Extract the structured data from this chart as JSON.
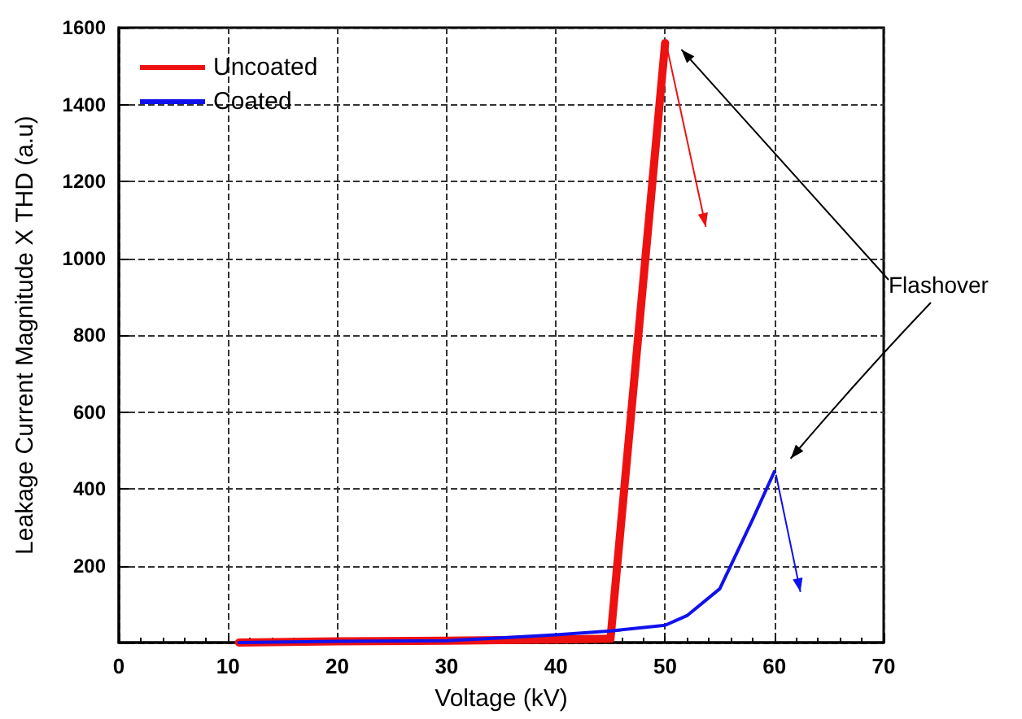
{
  "chart_data": {
    "type": "line",
    "xlabel": "Voltage (kV)",
    "ylabel": "Leakage Current Magnitude X THD (a.u)",
    "series": [
      {
        "name": "Uncoated",
        "color": "#ee1111",
        "x": [
          11,
          20,
          30,
          40,
          45,
          50
        ],
        "values": [
          0,
          3,
          5,
          8,
          10,
          1560
        ]
      },
      {
        "name": "Coated",
        "color": "#1111ee",
        "x": [
          11,
          20,
          30,
          35,
          40,
          45,
          50,
          52,
          55,
          58,
          60
        ],
        "values": [
          0,
          3,
          5,
          12,
          20,
          30,
          45,
          70,
          140,
          320,
          445
        ]
      }
    ],
    "xlim": [
      0,
      70
    ],
    "xticks": [
      0,
      10,
      20,
      30,
      40,
      50,
      60,
      70
    ],
    "ylim": [
      0,
      1600
    ],
    "yticks": [
      {
        "value": 0,
        "label": null
      },
      200,
      400,
      600,
      800,
      1000,
      1200,
      1400,
      1600
    ],
    "annotations": [
      "Flashover"
    ],
    "grid": true,
    "legend": "top left",
    "marker": "none",
    "line_style": "solid"
  }
}
